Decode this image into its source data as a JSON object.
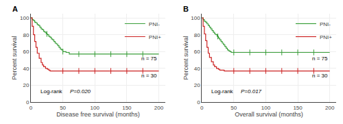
{
  "chart_data": [
    {
      "type": "line",
      "title": "A",
      "xlabel": "Disease free survival (months)",
      "ylabel": "Percent survival",
      "xlim": [
        0,
        210
      ],
      "ylim": [
        0,
        105
      ],
      "xticks": [
        0,
        50,
        100,
        150,
        200
      ],
      "yticks": [
        0,
        20,
        40,
        60,
        80,
        100
      ],
      "grid": true,
      "legend": "upper right",
      "line_style": "step",
      "annotations": [
        "n = 75",
        "n = 30",
        "Log-rank",
        "P=0.020"
      ],
      "series": [
        {
          "name": "PNI-",
          "color": "#3a9e3a",
          "x": [
            0,
            2,
            4,
            6,
            8,
            10,
            12,
            14,
            16,
            18,
            20,
            22,
            24,
            26,
            28,
            30,
            32,
            34,
            36,
            38,
            40,
            42,
            44,
            46,
            48,
            50,
            55,
            60,
            70,
            80,
            100,
            120,
            140,
            160,
            180,
            200
          ],
          "values": [
            100,
            98,
            97,
            95,
            94,
            92,
            91,
            89,
            87,
            86,
            84,
            83,
            81,
            80,
            78,
            77,
            75,
            74,
            72,
            70,
            69,
            67,
            65,
            63,
            62,
            60,
            59,
            57,
            57,
            57,
            57,
            57,
            57,
            57,
            57,
            57
          ],
          "censored": [
            25,
            50,
            75,
            100,
            125,
            150,
            175
          ]
        },
        {
          "name": "PNI+",
          "color": "#cc2222",
          "x": [
            0,
            2,
            4,
            6,
            8,
            10,
            13,
            16,
            18,
            20,
            23,
            26,
            28,
            30,
            33,
            35,
            38,
            40,
            45,
            55,
            70,
            100,
            150,
            200
          ],
          "values": [
            100,
            90,
            80,
            72,
            65,
            58,
            52,
            47,
            44,
            42,
            40,
            39,
            38,
            37,
            37,
            37,
            37,
            37,
            37,
            37,
            37,
            37,
            37,
            37
          ],
          "censored": [
            50,
            75,
            100,
            125,
            150,
            175
          ]
        }
      ]
    },
    {
      "type": "line",
      "title": "B",
      "xlabel": "Overall survival (months)",
      "ylabel": "Percent survival",
      "xlim": [
        0,
        210
      ],
      "ylim": [
        0,
        105
      ],
      "xticks": [
        0,
        50,
        100,
        150,
        200
      ],
      "yticks": [
        0,
        20,
        40,
        60,
        80,
        100
      ],
      "grid": true,
      "legend": "upper right",
      "line_style": "step",
      "annotations": [
        "n = 75",
        "n = 30",
        "Log-rank",
        "P=0.017"
      ],
      "series": [
        {
          "name": "PNI-",
          "color": "#3a9e3a",
          "x": [
            0,
            2,
            4,
            6,
            8,
            10,
            12,
            14,
            16,
            18,
            20,
            22,
            24,
            26,
            28,
            30,
            32,
            34,
            36,
            38,
            40,
            42,
            44,
            46,
            48,
            50,
            55,
            60,
            70,
            80,
            100,
            120,
            140,
            160,
            180,
            200
          ],
          "values": [
            100,
            98,
            96,
            95,
            93,
            91,
            89,
            87,
            85,
            83,
            81,
            80,
            78,
            76,
            74,
            72,
            70,
            68,
            66,
            64,
            62,
            61,
            60,
            59,
            59,
            59,
            59,
            59,
            59,
            59,
            59,
            59,
            59,
            59,
            59,
            59
          ],
          "censored": [
            25,
            50,
            75,
            100,
            125,
            150,
            175
          ]
        },
        {
          "name": "PNI+",
          "color": "#cc2222",
          "x": [
            0,
            2,
            4,
            6,
            8,
            10,
            12,
            15,
            18,
            20,
            23,
            26,
            28,
            30,
            33,
            35,
            38,
            40,
            45,
            55,
            70,
            100,
            150,
            200
          ],
          "values": [
            100,
            90,
            81,
            73,
            65,
            58,
            53,
            48,
            44,
            42,
            40,
            39,
            38,
            38,
            38,
            37,
            37,
            37,
            37,
            37,
            37,
            37,
            37,
            37
          ],
          "censored": [
            50,
            75,
            100,
            125,
            150,
            175
          ]
        }
      ]
    }
  ]
}
